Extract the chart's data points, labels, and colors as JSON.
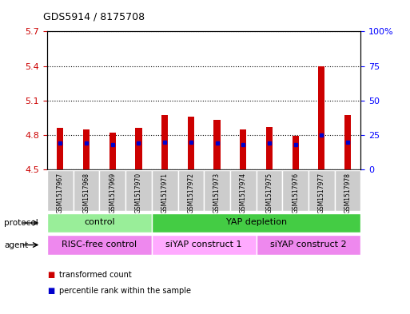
{
  "title": "GDS5914 / 8175708",
  "samples": [
    "GSM1517967",
    "GSM1517968",
    "GSM1517969",
    "GSM1517970",
    "GSM1517971",
    "GSM1517972",
    "GSM1517973",
    "GSM1517974",
    "GSM1517975",
    "GSM1517976",
    "GSM1517977",
    "GSM1517978"
  ],
  "bar_heights": [
    4.86,
    4.85,
    4.82,
    4.86,
    4.97,
    4.96,
    4.93,
    4.85,
    4.87,
    4.79,
    5.4,
    4.97
  ],
  "blue_positions": [
    4.73,
    4.73,
    4.72,
    4.73,
    4.74,
    4.74,
    4.73,
    4.72,
    4.73,
    4.72,
    4.8,
    4.74
  ],
  "baseline": 4.5,
  "ylim_left": [
    4.5,
    5.7
  ],
  "ylim_right": [
    0,
    100
  ],
  "yticks_left": [
    4.5,
    4.8,
    5.1,
    5.4,
    5.7
  ],
  "yticks_right": [
    0,
    25,
    50,
    75,
    100
  ],
  "ytick_labels_right": [
    "0",
    "25",
    "50",
    "75",
    "100%"
  ],
  "bar_color": "#CC0000",
  "blue_color": "#0000CC",
  "protocol_groups": [
    {
      "label": "control",
      "start": 0,
      "end": 3,
      "color": "#99EE99"
    },
    {
      "label": "YAP depletion",
      "start": 4,
      "end": 11,
      "color": "#44CC44"
    }
  ],
  "agent_groups": [
    {
      "label": "RISC-free control",
      "start": 0,
      "end": 3,
      "color": "#EE88EE"
    },
    {
      "label": "siYAP construct 1",
      "start": 4,
      "end": 7,
      "color": "#FFAAFF"
    },
    {
      "label": "siYAP construct 2",
      "start": 8,
      "end": 11,
      "color": "#EE88EE"
    }
  ],
  "legend_items": [
    {
      "label": "transformed count",
      "color": "#CC0000"
    },
    {
      "label": "percentile rank within the sample",
      "color": "#0000CC"
    }
  ],
  "bar_width": 0.25,
  "sample_box_color": "#CCCCCC",
  "background_color": "#ffffff",
  "plot_bg": "#ffffff",
  "left_label_color": "#CC0000",
  "right_label_color": "#0000FF"
}
